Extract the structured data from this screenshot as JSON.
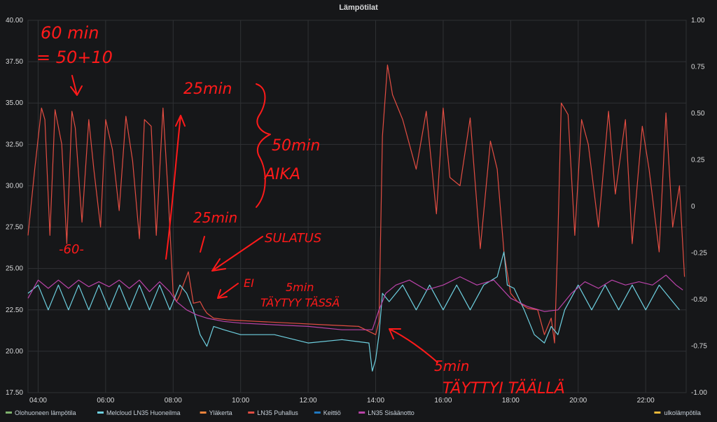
{
  "chart_data": {
    "type": "line",
    "title": "Lämpötilat",
    "x_ticks": [
      "04:00",
      "06:00",
      "08:00",
      "10:00",
      "12:00",
      "14:00",
      "16:00",
      "18:00",
      "20:00",
      "22:00"
    ],
    "xlim": [
      3.7,
      23.2
    ],
    "y_left": {
      "ticks": [
        "17.50",
        "20.00",
        "22.50",
        "25.00",
        "27.50",
        "30.00",
        "32.50",
        "35.00",
        "37.50",
        "40.00"
      ],
      "range": [
        17.5,
        40
      ]
    },
    "y_right": {
      "ticks": [
        "-1.00",
        "-0.75",
        "-0.50",
        "-0.25",
        "0",
        "0.25",
        "0.50",
        "0.75",
        "1.00"
      ],
      "range": [
        -1,
        1
      ]
    },
    "grid": true,
    "legend_position": "bottom",
    "legend": [
      {
        "name": "Olohuoneen lämpötila",
        "color": "#7eb26d"
      },
      {
        "name": "Melcloud LN35 Huoneilma",
        "color": "#6ed0e0"
      },
      {
        "name": "Yläkerta",
        "color": "#ef843c"
      },
      {
        "name": "LN35 Puhallus",
        "color": "#e24d42"
      },
      {
        "name": "Keittiö",
        "color": "#1f78c1"
      },
      {
        "name": "LN35 Sisäänotto",
        "color": "#ba43a9"
      },
      {
        "name": "ulkolämpötila",
        "color": "#eab839"
      }
    ],
    "series": [
      {
        "name": "LN35 Puhallus",
        "color": "#e24d42",
        "x": [
          3.7,
          3.9,
          4.1,
          4.2,
          4.35,
          4.5,
          4.7,
          4.85,
          5.0,
          5.1,
          5.3,
          5.5,
          5.65,
          5.85,
          6.0,
          6.2,
          6.4,
          6.6,
          6.8,
          7.0,
          7.15,
          7.35,
          7.5,
          7.7,
          7.85,
          8.0,
          8.1,
          8.2,
          8.3,
          8.45,
          8.6,
          8.8,
          8.9,
          9.0,
          9.2,
          9.6,
          10.5,
          11.5,
          12.5,
          13.5,
          14.0,
          14.1,
          14.2,
          14.35,
          14.5,
          14.8,
          15.2,
          15.5,
          15.8,
          16.0,
          16.2,
          16.5,
          16.8,
          17.1,
          17.4,
          17.6,
          17.8,
          18.0,
          18.2,
          18.5,
          18.8,
          19.0,
          19.2,
          19.3,
          19.4,
          19.5,
          19.7,
          19.9,
          20.1,
          20.3,
          20.6,
          20.9,
          21.1,
          21.4,
          21.6,
          21.9,
          22.1,
          22.4,
          22.6,
          22.8,
          23.0,
          23.15
        ],
        "y": [
          27.0,
          31.0,
          34.7,
          34.0,
          27.0,
          34.6,
          32.5,
          26.5,
          34.5,
          33.5,
          27.8,
          34.0,
          31.0,
          27.5,
          34.0,
          32.2,
          28.5,
          34.2,
          31.5,
          26.8,
          34.0,
          33.6,
          27.0,
          34.7,
          29.5,
          23.5,
          23.0,
          23.4,
          24.0,
          24.8,
          22.9,
          23.0,
          22.6,
          22.3,
          22.0,
          21.9,
          21.8,
          21.7,
          21.6,
          21.5,
          21.0,
          21.8,
          33.0,
          37.3,
          35.5,
          34.0,
          31.0,
          34.5,
          28.3,
          34.7,
          30.5,
          30.0,
          34.1,
          26.2,
          32.7,
          31.0,
          26.0,
          23.5,
          23.0,
          22.6,
          22.5,
          21.0,
          22.0,
          20.5,
          27.0,
          35.0,
          34.3,
          27.0,
          34.0,
          32.5,
          27.5,
          34.5,
          29.5,
          34.0,
          26.5,
          33.6,
          31.0,
          26.0,
          34.4,
          27.5,
          30.0,
          24.5
        ]
      },
      {
        "name": "Melcloud LN35 Huoneilma",
        "color": "#6ed0e0",
        "x": [
          3.7,
          4.0,
          4.3,
          4.6,
          4.9,
          5.2,
          5.5,
          5.8,
          6.1,
          6.4,
          6.7,
          7.0,
          7.3,
          7.6,
          7.9,
          8.2,
          8.4,
          8.6,
          8.8,
          9.0,
          9.2,
          9.5,
          10.0,
          11.0,
          12.0,
          13.0,
          13.8,
          13.9,
          14.0,
          14.1,
          14.2,
          14.4,
          14.8,
          15.2,
          15.6,
          16.0,
          16.4,
          16.8,
          17.2,
          17.6,
          17.8,
          17.9,
          18.1,
          18.4,
          18.7,
          19.0,
          19.2,
          19.4,
          19.6,
          20.0,
          20.4,
          20.8,
          21.2,
          21.6,
          22.0,
          22.4,
          22.8,
          23.0
        ],
        "y": [
          23.5,
          24.0,
          22.5,
          24.0,
          22.5,
          24.0,
          22.5,
          24.0,
          22.5,
          24.0,
          22.5,
          24.0,
          22.5,
          24.0,
          22.5,
          24.0,
          23.5,
          22.5,
          21.0,
          20.3,
          21.5,
          21.3,
          21.0,
          21.0,
          20.5,
          20.7,
          20.5,
          18.8,
          19.5,
          21.0,
          23.5,
          23.0,
          24.0,
          22.5,
          24.0,
          22.5,
          24.0,
          22.5,
          24.0,
          24.5,
          26.0,
          24.0,
          23.8,
          22.5,
          21.0,
          20.5,
          21.5,
          21.0,
          22.5,
          24.0,
          22.5,
          24.0,
          22.5,
          24.0,
          22.5,
          24.0,
          23.0,
          22.5
        ]
      },
      {
        "name": "LN35 Sisäänotto",
        "color": "#ba43a9",
        "x": [
          3.7,
          4.0,
          4.3,
          4.6,
          4.9,
          5.2,
          5.5,
          5.8,
          6.1,
          6.4,
          6.7,
          7.0,
          7.3,
          7.6,
          7.9,
          8.1,
          8.4,
          8.7,
          9.0,
          9.5,
          10.0,
          11.0,
          12.0,
          13.0,
          13.9,
          14.1,
          14.3,
          14.6,
          15.0,
          15.5,
          16.0,
          16.5,
          17.0,
          17.5,
          18.0,
          18.5,
          19.0,
          19.4,
          19.8,
          20.2,
          20.6,
          21.0,
          21.4,
          21.8,
          22.2,
          22.6,
          22.9,
          23.1
        ],
        "y": [
          23.2,
          24.3,
          23.8,
          24.3,
          23.8,
          24.3,
          23.9,
          24.2,
          23.9,
          24.3,
          23.8,
          24.3,
          23.6,
          24.2,
          23.6,
          23.0,
          22.5,
          22.2,
          22.0,
          21.8,
          21.7,
          21.6,
          21.5,
          21.3,
          21.3,
          22.5,
          23.5,
          24.0,
          24.3,
          23.7,
          24.0,
          24.5,
          24.0,
          24.3,
          23.2,
          22.7,
          22.4,
          22.5,
          23.5,
          24.2,
          23.8,
          24.3,
          24.0,
          24.2,
          24.0,
          24.6,
          24.0,
          23.7
        ]
      }
    ]
  },
  "annotations": [
    {
      "text": "60 min",
      "size": 24
    },
    {
      "text": "= 50+10",
      "size": 24
    },
    {
      "text": "25min",
      "size": 22
    },
    {
      "text": "50min",
      "size": 22
    },
    {
      "text": "AIKA",
      "size": 22
    },
    {
      "text": "-60-",
      "size": 18
    },
    {
      "text": "25min",
      "size": 20
    },
    {
      "text": "SULATUS",
      "size": 18
    },
    {
      "text": "EI",
      "size": 16
    },
    {
      "text": "5min",
      "size": 16
    },
    {
      "text": "TÄYTYY TÄSSÄ",
      "size": 16
    },
    {
      "text": "5min",
      "size": 20
    },
    {
      "text": "TÄYTTYI TÄÄLLÄ",
      "size": 22
    }
  ]
}
